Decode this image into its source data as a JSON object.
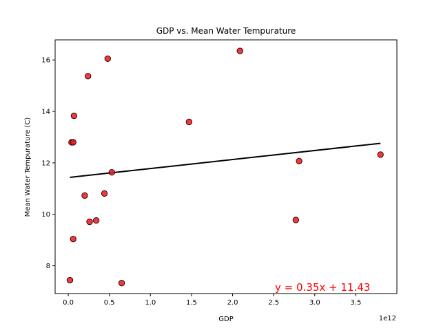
{
  "chart_data": {
    "type": "scatter",
    "title": "GDP vs. Mean Water Tempurature",
    "xlabel": "GDP",
    "ylabel": "Mean Water Tempurature (C)",
    "x_offset_label": "1e12",
    "xlim": [
      -0.16,
      4.0
    ],
    "ylim": [
      6.92,
      16.78
    ],
    "xticks": [
      0.0,
      0.5,
      1.0,
      1.5,
      2.0,
      2.5,
      3.0,
      3.5
    ],
    "xtick_labels": [
      "0.0",
      "0.5",
      "1.0",
      "1.5",
      "2.0",
      "2.5",
      "3.0",
      "3.5"
    ],
    "yticks": [
      8,
      10,
      12,
      14,
      16
    ],
    "ytick_labels": [
      "8",
      "10",
      "12",
      "14",
      "16"
    ],
    "grid": false,
    "marker_color": "#e8191c",
    "marker_edge_color": "#3a0000",
    "line_color": "#000000",
    "annotation_color": "#ff0000",
    "points": [
      {
        "x": 0.02,
        "y": 7.44
      },
      {
        "x": 0.04,
        "y": 12.8
      },
      {
        "x": 0.06,
        "y": 12.8
      },
      {
        "x": 0.06,
        "y": 9.04
      },
      {
        "x": 0.07,
        "y": 13.83
      },
      {
        "x": 0.2,
        "y": 10.73
      },
      {
        "x": 0.24,
        "y": 15.37
      },
      {
        "x": 0.26,
        "y": 9.71
      },
      {
        "x": 0.34,
        "y": 9.76
      },
      {
        "x": 0.44,
        "y": 10.81
      },
      {
        "x": 0.48,
        "y": 16.05
      },
      {
        "x": 0.53,
        "y": 11.63
      },
      {
        "x": 0.65,
        "y": 7.33
      },
      {
        "x": 1.47,
        "y": 13.59
      },
      {
        "x": 2.09,
        "y": 16.35
      },
      {
        "x": 2.77,
        "y": 9.78
      },
      {
        "x": 2.81,
        "y": 12.07
      },
      {
        "x": 3.8,
        "y": 12.32
      }
    ],
    "regression": {
      "slope": 0.35,
      "intercept": 11.43,
      "x_range": [
        0.02,
        3.8
      ],
      "equation": "y = 0.35x + 11.43"
    }
  }
}
